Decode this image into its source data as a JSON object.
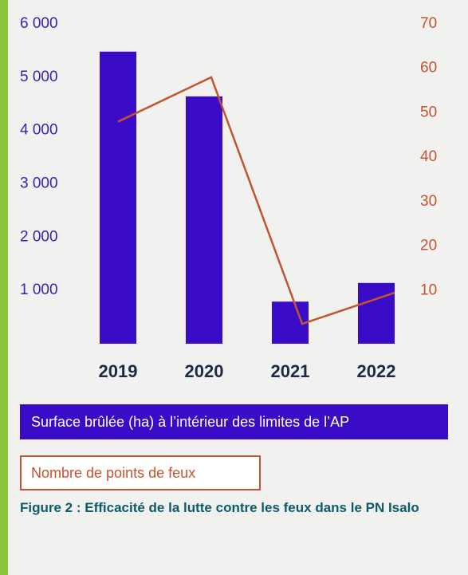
{
  "chart_data": {
    "type": "bar-line",
    "categories": [
      "2019",
      "2020",
      "2021",
      "2022"
    ],
    "series": [
      {
        "name": "Surface brûlée (ha) à l’intérieur des limites de l’AP",
        "type": "bar",
        "color": "#3a0cc8",
        "values": [
          5480,
          4640,
          790,
          1140
        ]
      },
      {
        "name": "Nombre de points de feux",
        "type": "line",
        "axis": "y2",
        "color": "#c4532e",
        "values": [
          48,
          58,
          2.5,
          9.5
        ]
      }
    ],
    "ylim": [
      0,
      6000
    ],
    "yticks": [
      {
        "value": 1000,
        "label": "1 000"
      },
      {
        "value": 2000,
        "label": "2 000"
      },
      {
        "value": 3000,
        "label": "3 000"
      },
      {
        "value": 4000,
        "label": "4 000"
      },
      {
        "value": 5000,
        "label": "5 000"
      },
      {
        "value": 6000,
        "label": "6 000"
      }
    ],
    "y2lim": [
      0,
      70
    ],
    "y2ticks": [
      10,
      20,
      30,
      40,
      50,
      60,
      70
    ],
    "caption": "Figure 2 : Efficacité de la lutte contre les feux dans le PN Isalo"
  }
}
